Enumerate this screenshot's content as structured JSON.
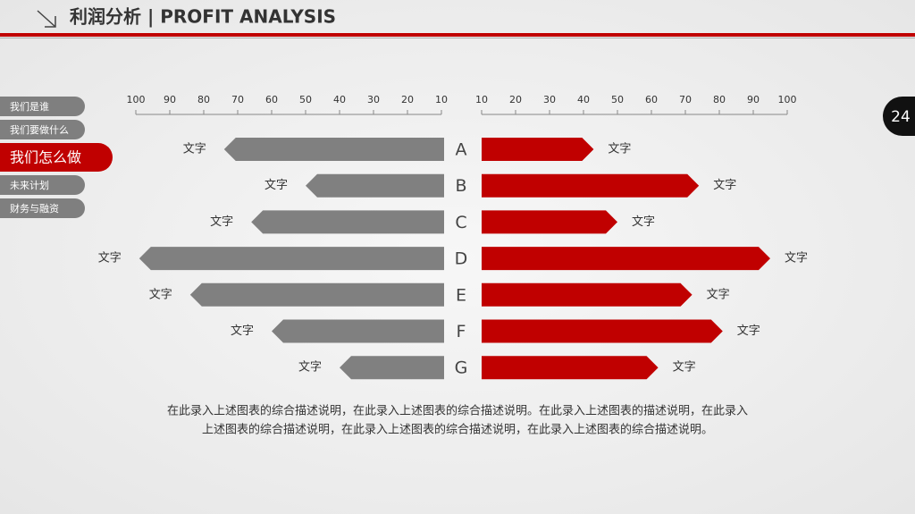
{
  "header": {
    "title": "利润分析 | PROFIT ANALYSIS"
  },
  "nav": {
    "items": [
      "我们是谁",
      "我们要做什么",
      "我们怎么做",
      "未来计划",
      "财务与融资"
    ],
    "active": 2
  },
  "page_number": "24",
  "description": [
    "在此录入上述图表的综合描述说明，在此录入上述图表的综合描述说明。在此录入上述图表的描述说明，在此录入",
    "上述图表的综合描述说明，在此录入上述图表的综合描述说明，在此录入上述图表的综合描述说明。"
  ],
  "chart_data": {
    "type": "butterfly",
    "categories": [
      "A",
      "B",
      "C",
      "D",
      "E",
      "F",
      "G"
    ],
    "xlim": [
      10,
      100
    ],
    "xticks": [
      10,
      20,
      30,
      40,
      50,
      60,
      70,
      80,
      90,
      100
    ],
    "series": [
      {
        "side": "left",
        "color": "#808080",
        "values": [
          74,
          50,
          66,
          99,
          84,
          60,
          40
        ],
        "value_labels": [
          "文字",
          "文字",
          "文字",
          "文字",
          "文字",
          "文字",
          "文字"
        ]
      },
      {
        "side": "right",
        "color": "#c00000",
        "values": [
          43,
          74,
          50,
          95,
          72,
          81,
          62
        ],
        "value_labels": [
          "文字",
          "文字",
          "文字",
          "文字",
          "文字",
          "文字",
          "文字"
        ]
      }
    ]
  }
}
